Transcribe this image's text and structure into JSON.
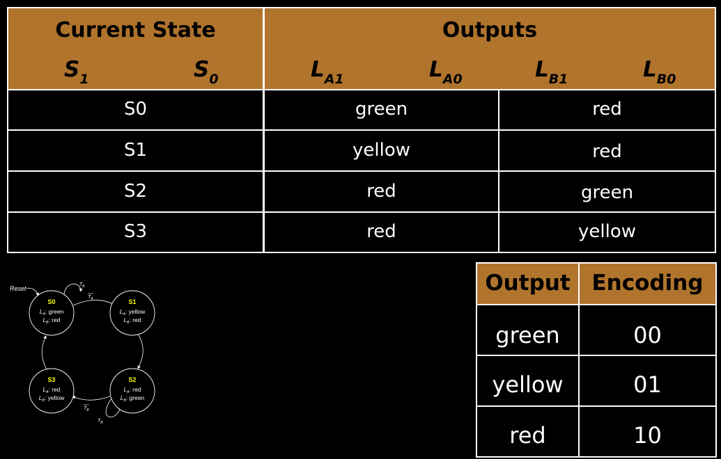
{
  "main_table": {
    "header": {
      "current_state": "Current State",
      "outputs": "Outputs"
    },
    "variables": {
      "s1": {
        "base": "S",
        "sub": "1"
      },
      "s0": {
        "base": "S",
        "sub": "0"
      },
      "la1": {
        "base": "L",
        "sub": "A1"
      },
      "la0": {
        "base": "L",
        "sub": "A0"
      },
      "lb1": {
        "base": "L",
        "sub": "B1"
      },
      "lb0": {
        "base": "L",
        "sub": "B0"
      }
    },
    "rows": [
      {
        "state": "S0",
        "la": "green",
        "lb": "red"
      },
      {
        "state": "S1",
        "la": "yellow",
        "lb": "red"
      },
      {
        "state": "S2",
        "la": "red",
        "lb": "green"
      },
      {
        "state": "S3",
        "la": "red",
        "lb": "yellow"
      }
    ]
  },
  "encoding_table": {
    "header": {
      "output": "Output",
      "encoding": "Encoding"
    },
    "rows": [
      {
        "output": "green",
        "encoding": "00"
      },
      {
        "output": "yellow",
        "encoding": "01"
      },
      {
        "output": "red",
        "encoding": "10"
      }
    ]
  },
  "fsm": {
    "reset_label": "Reset",
    "states": [
      {
        "name": "S0",
        "la": "green",
        "lb": "red"
      },
      {
        "name": "S1",
        "la": "yellow",
        "lb": "red"
      },
      {
        "name": "S2",
        "la": "red",
        "lb": "green"
      },
      {
        "name": "S3",
        "la": "red",
        "lb": "yellow"
      }
    ],
    "la_label": "L",
    "la_sub": "A",
    "lb_label": "L",
    "lb_sub": "B",
    "ta_label": "T",
    "ta_sub": "A",
    "tb_label": "T",
    "tb_sub": "B"
  },
  "colors": {
    "header_bg": "#b0742d",
    "state_name": "#ffff00",
    "background": "#000000",
    "lines": "#ffffff"
  }
}
